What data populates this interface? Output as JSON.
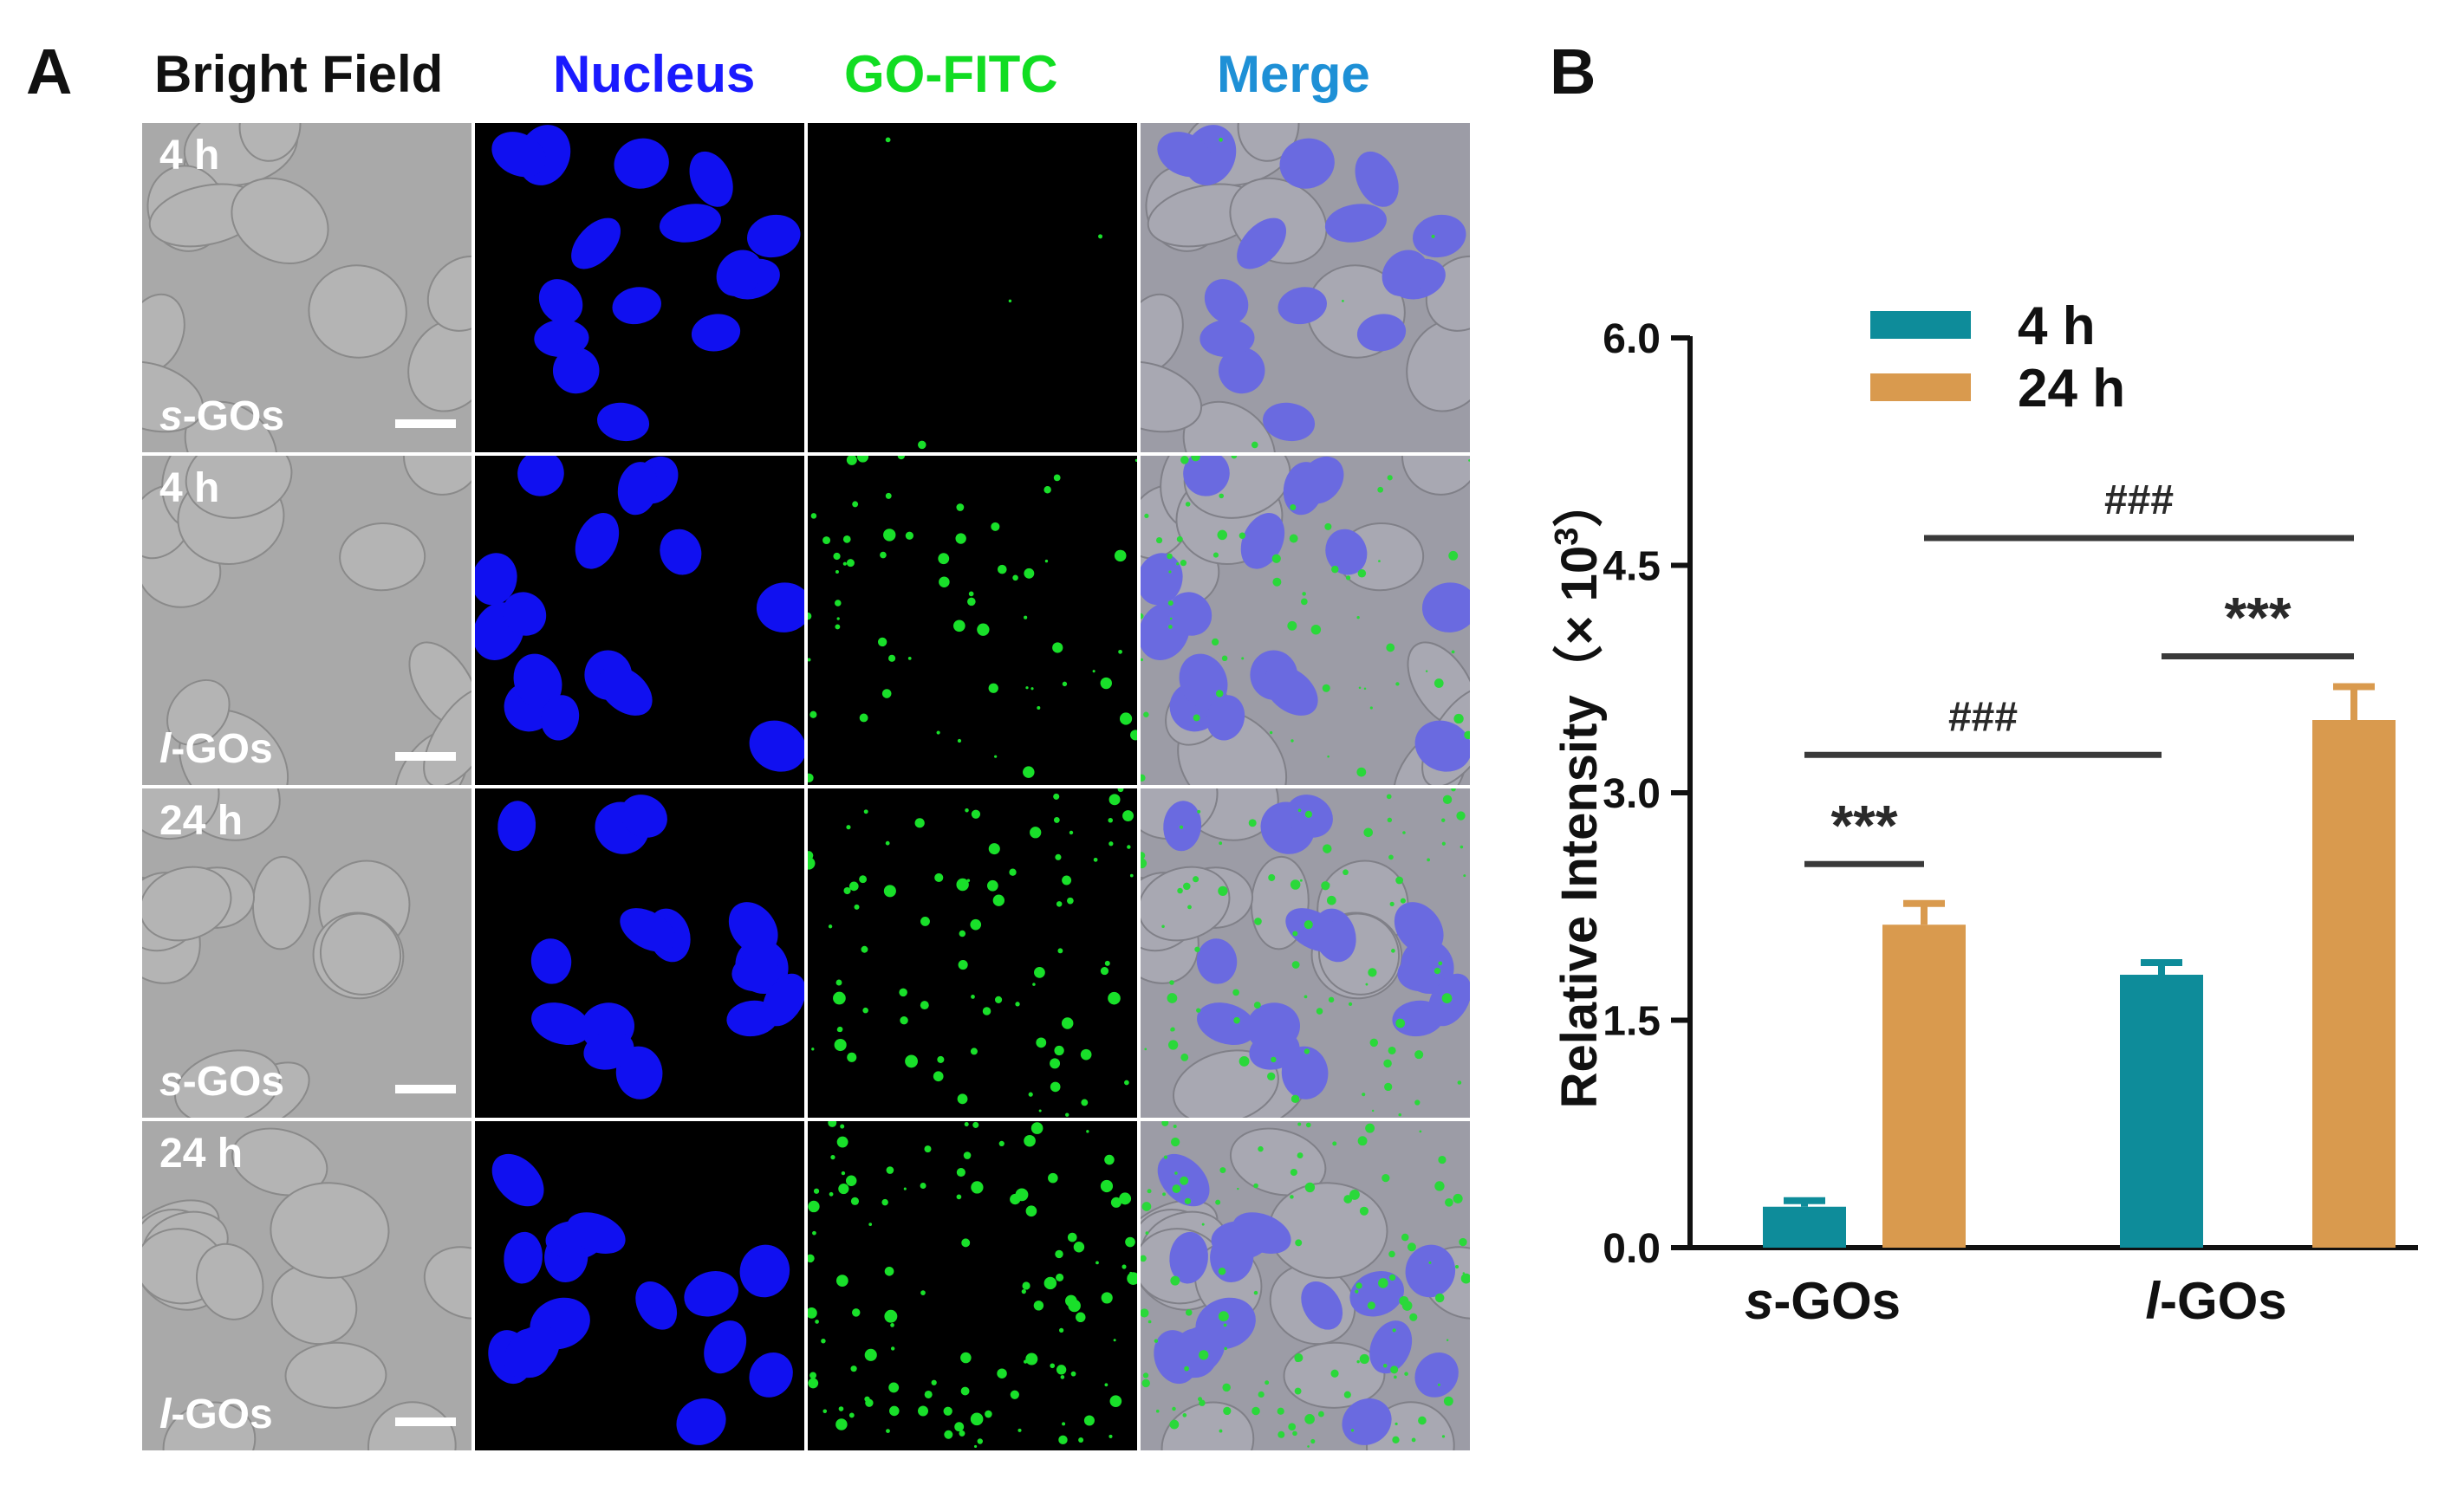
{
  "panel_a": {
    "letter": "A",
    "columns": [
      {
        "label": "Bright Field",
        "color": "#111111"
      },
      {
        "label": "Nucleus",
        "color": "#1a1aff"
      },
      {
        "label": "GO-FITC",
        "color": "#11dd22"
      },
      {
        "label": "Merge",
        "color": "#1e90d6"
      }
    ],
    "rows": [
      {
        "time": "4 h",
        "group_prefix": "s",
        "group_suffix": "-GOs"
      },
      {
        "time": "4 h",
        "group_prefix": "l",
        "group_suffix": "-GOs"
      },
      {
        "time": "24 h",
        "group_prefix": "s",
        "group_suffix": "-GOs"
      },
      {
        "time": "24 h",
        "group_prefix": "l",
        "group_suffix": "-GOs"
      }
    ]
  },
  "panel_b": {
    "letter": "B",
    "chart_data": {
      "type": "bar",
      "ylabel": "Relative Intensity（× 10",
      "ylabel_sup": "3",
      "ylabel_close": "）",
      "ylim": [
        0,
        6.0
      ],
      "yticks": [
        "0.0",
        "1.5",
        "3.0",
        "4.5",
        "6.0"
      ],
      "ytick_values": [
        0,
        1.5,
        3.0,
        4.5,
        6.0
      ],
      "categories": [
        {
          "prefix": "s",
          "suffix": "-GOs"
        },
        {
          "prefix": "l",
          "suffix": "-GOs"
        }
      ],
      "series": [
        {
          "name": "4 h",
          "color": "#0e8c9a",
          "values": [
            0.27,
            1.8
          ],
          "errors": [
            0.04,
            0.08
          ]
        },
        {
          "name": "24 h",
          "color": "#d99a4e",
          "values": [
            2.13,
            3.48
          ],
          "errors": [
            0.14,
            0.22
          ]
        }
      ],
      "legend_position": "top-left",
      "annotations": [
        {
          "text": "***",
          "from": {
            "cat": 0,
            "series": 0
          },
          "to": {
            "cat": 0,
            "series": 1
          },
          "y": 2.53
        },
        {
          "text": "***",
          "from": {
            "cat": 1,
            "series": 0
          },
          "to": {
            "cat": 1,
            "series": 1
          },
          "y": 3.9
        },
        {
          "text": "###",
          "from": {
            "cat": 0,
            "series": 0
          },
          "to": {
            "cat": 1,
            "series": 0
          },
          "y": 3.25
        },
        {
          "text": "###",
          "from": {
            "cat": 0,
            "series": 1
          },
          "to": {
            "cat": 1,
            "series": 1
          },
          "y": 4.68
        }
      ]
    }
  }
}
